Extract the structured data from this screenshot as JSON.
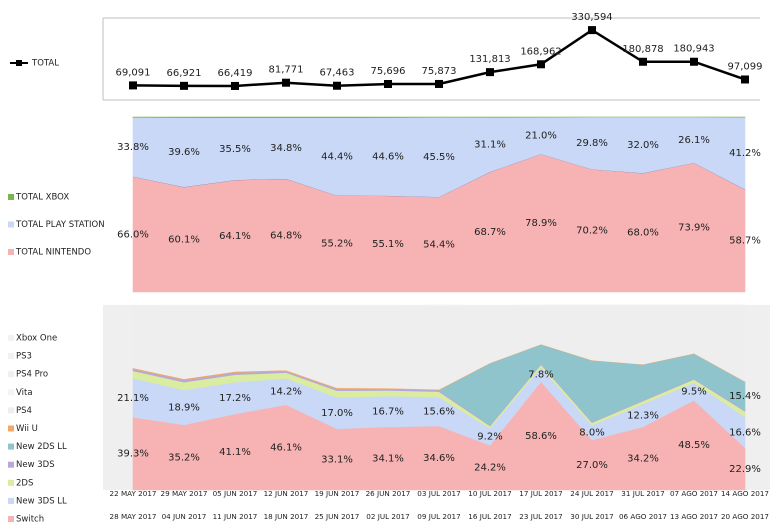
{
  "chart_data": [
    {
      "type": "line",
      "legend": "left",
      "ylim": [
        0,
        350000
      ],
      "series": [
        {
          "name": "TOTAL",
          "color": "#000000",
          "values": [
            69091,
            66921,
            66419,
            81771,
            67463,
            75696,
            75873,
            131813,
            168962,
            330594,
            180878,
            180943,
            97099
          ],
          "value_labels": [
            "69,091",
            "66,921",
            "66,419",
            "81,771",
            "67,463",
            "75,696",
            "75,873",
            "131,813",
            "168,962",
            "330,594",
            "180,878",
            "180,943",
            "97,099"
          ]
        }
      ]
    },
    {
      "type": "area",
      "stacked": true,
      "legend": "left",
      "ylim": [
        0,
        100
      ],
      "series": [
        {
          "name": "TOTAL NINTENDO",
          "color": "#f7b3b3",
          "values": [
            66.0,
            60.1,
            64.1,
            64.8,
            55.2,
            55.1,
            54.4,
            68.7,
            78.9,
            70.2,
            68.0,
            73.9,
            58.7
          ],
          "value_labels": [
            "66.0%",
            "60.1%",
            "64.1%",
            "64.8%",
            "55.2%",
            "55.1%",
            "54.4%",
            "68.7%",
            "78.9%",
            "70.2%",
            "68.0%",
            "73.9%",
            "58.7%"
          ]
        },
        {
          "name": "TOTAL PLAY STATION",
          "color": "#c8d8f6",
          "values": [
            33.8,
            39.6,
            35.5,
            34.8,
            44.4,
            44.6,
            45.5,
            31.1,
            21.0,
            29.8,
            32.0,
            26.1,
            41.2
          ],
          "value_labels": [
            "33.8%",
            "39.6%",
            "35.5%",
            "34.8%",
            "44.4%",
            "44.6%",
            "45.5%",
            "31.1%",
            "21.0%",
            "29.8%",
            "32.0%",
            "26.1%",
            "41.2%"
          ]
        },
        {
          "name": "TOTAL XBOX",
          "color": "#7ab648",
          "values": [
            0.2,
            0.3,
            0.4,
            0.4,
            0.4,
            0.3,
            0.1,
            0.2,
            0.1,
            0.0,
            0.0,
            0.0,
            0.1
          ]
        }
      ]
    },
    {
      "type": "area",
      "stacked": true,
      "legend": "left",
      "ylim": [
        0,
        100
      ],
      "categories": [
        [
          "22 MAY 2017",
          "28 MAY 2017"
        ],
        [
          "29 MAY 2017",
          "04 JUN 2017"
        ],
        [
          "05 JUN 2017",
          "11 JUN 2017"
        ],
        [
          "12 JUN 2017",
          "18 JUN 2017"
        ],
        [
          "19 JUN 2017",
          "25 JUN 2017"
        ],
        [
          "26 JUN 2017",
          "02 JUL 2017"
        ],
        [
          "03 JUL 2017",
          "09 JUL 2017"
        ],
        [
          "10 JUL 2017",
          "16 JUL 2017"
        ],
        [
          "17 JUL 2017",
          "23 JUL 2017"
        ],
        [
          "24 JUL 2017",
          "30 JUL 2017"
        ],
        [
          "31 JUL 2017",
          "06 AGO 2017"
        ],
        [
          "07 AGO 2017",
          "13 AGO 2017"
        ],
        [
          "14 AGO 2017",
          "20 AGO 2017"
        ]
      ],
      "series": [
        {
          "name": "Switch",
          "color": "#f7b3b3",
          "values": [
            39.3,
            35.2,
            41.1,
            46.1,
            33.1,
            34.1,
            34.6,
            24.2,
            58.6,
            27.0,
            34.2,
            48.5,
            22.9
          ],
          "value_labels": [
            "39.3%",
            "35.2%",
            "41.1%",
            "46.1%",
            "33.1%",
            "34.1%",
            "34.6%",
            "24.2%",
            "58.6%",
            "27.0%",
            "34.2%",
            "48.5%",
            "22.9%"
          ]
        },
        {
          "name": "New 3DS LL",
          "color": "#c8d8f6",
          "values": [
            21.1,
            18.9,
            17.2,
            14.2,
            17.0,
            16.7,
            15.6,
            9.2,
            7.8,
            8.0,
            12.3,
            9.5,
            16.6
          ],
          "value_labels": [
            "21.1%",
            "18.9%",
            "17.2%",
            "14.2%",
            "17.0%",
            "16.7%",
            "15.6%",
            "9.2%",
            "7.8%",
            "8.0%",
            "12.3%",
            "9.5%",
            "16.6%"
          ]
        },
        {
          "name": "2DS",
          "color": "#d9eca0",
          "values": [
            4.0,
            4.2,
            4.0,
            3.2,
            3.6,
            3.0,
            3.0,
            1.2,
            1.4,
            1.4,
            1.6,
            1.8,
            3.0
          ]
        },
        {
          "name": "New 3DS",
          "color": "#b9a7da",
          "values": [
            1.0,
            1.2,
            1.2,
            0.8,
            1.0,
            0.8,
            0.8,
            0.4,
            0.4,
            0.4,
            0.4,
            0.4,
            0.6
          ]
        },
        {
          "name": "New 2DS LL",
          "color": "#8fc4cd",
          "values": [
            0,
            0,
            0,
            0,
            0,
            0,
            0,
            33.5,
            10.5,
            33.2,
            19.3,
            13.5,
            15.4
          ],
          "value_labels": [
            null,
            null,
            null,
            null,
            null,
            null,
            null,
            null,
            null,
            null,
            null,
            null,
            "15.4%"
          ]
        },
        {
          "name": "Wii U",
          "color": "#f2a865",
          "values": [
            0.6,
            0.6,
            0.6,
            0.5,
            0.5,
            0.5,
            0.4,
            0.2,
            0.2,
            0.2,
            0.2,
            0.2,
            0.2
          ]
        },
        {
          "name": "PS4",
          "color": "#eeeeee",
          "values": [
            33.8,
            39.6,
            35.5,
            34.8,
            44.4,
            44.6,
            45.5,
            31.1,
            21.0,
            29.8,
            32.0,
            26.1,
            41.2
          ]
        },
        {
          "name": "Vita",
          "color": "#f4f4f4",
          "values": [
            0,
            0,
            0,
            0,
            0,
            0,
            0,
            0,
            0,
            0,
            0,
            0,
            0
          ]
        },
        {
          "name": "PS4 Pro",
          "color": "#f0f0f0",
          "values": [
            0,
            0,
            0,
            0,
            0,
            0,
            0,
            0,
            0,
            0,
            0,
            0,
            0
          ]
        },
        {
          "name": "PS3",
          "color": "#f5eef3",
          "values": [
            0,
            0,
            0,
            0,
            0,
            0,
            0,
            0,
            0,
            0,
            0,
            0,
            0
          ]
        },
        {
          "name": "Xbox One",
          "color": "#f2f2f2",
          "values": [
            0.2,
            0.3,
            0.4,
            0.4,
            0.4,
            0.3,
            0.1,
            0.2,
            0.1,
            0.0,
            0.0,
            0.0,
            0.1
          ]
        }
      ]
    }
  ]
}
